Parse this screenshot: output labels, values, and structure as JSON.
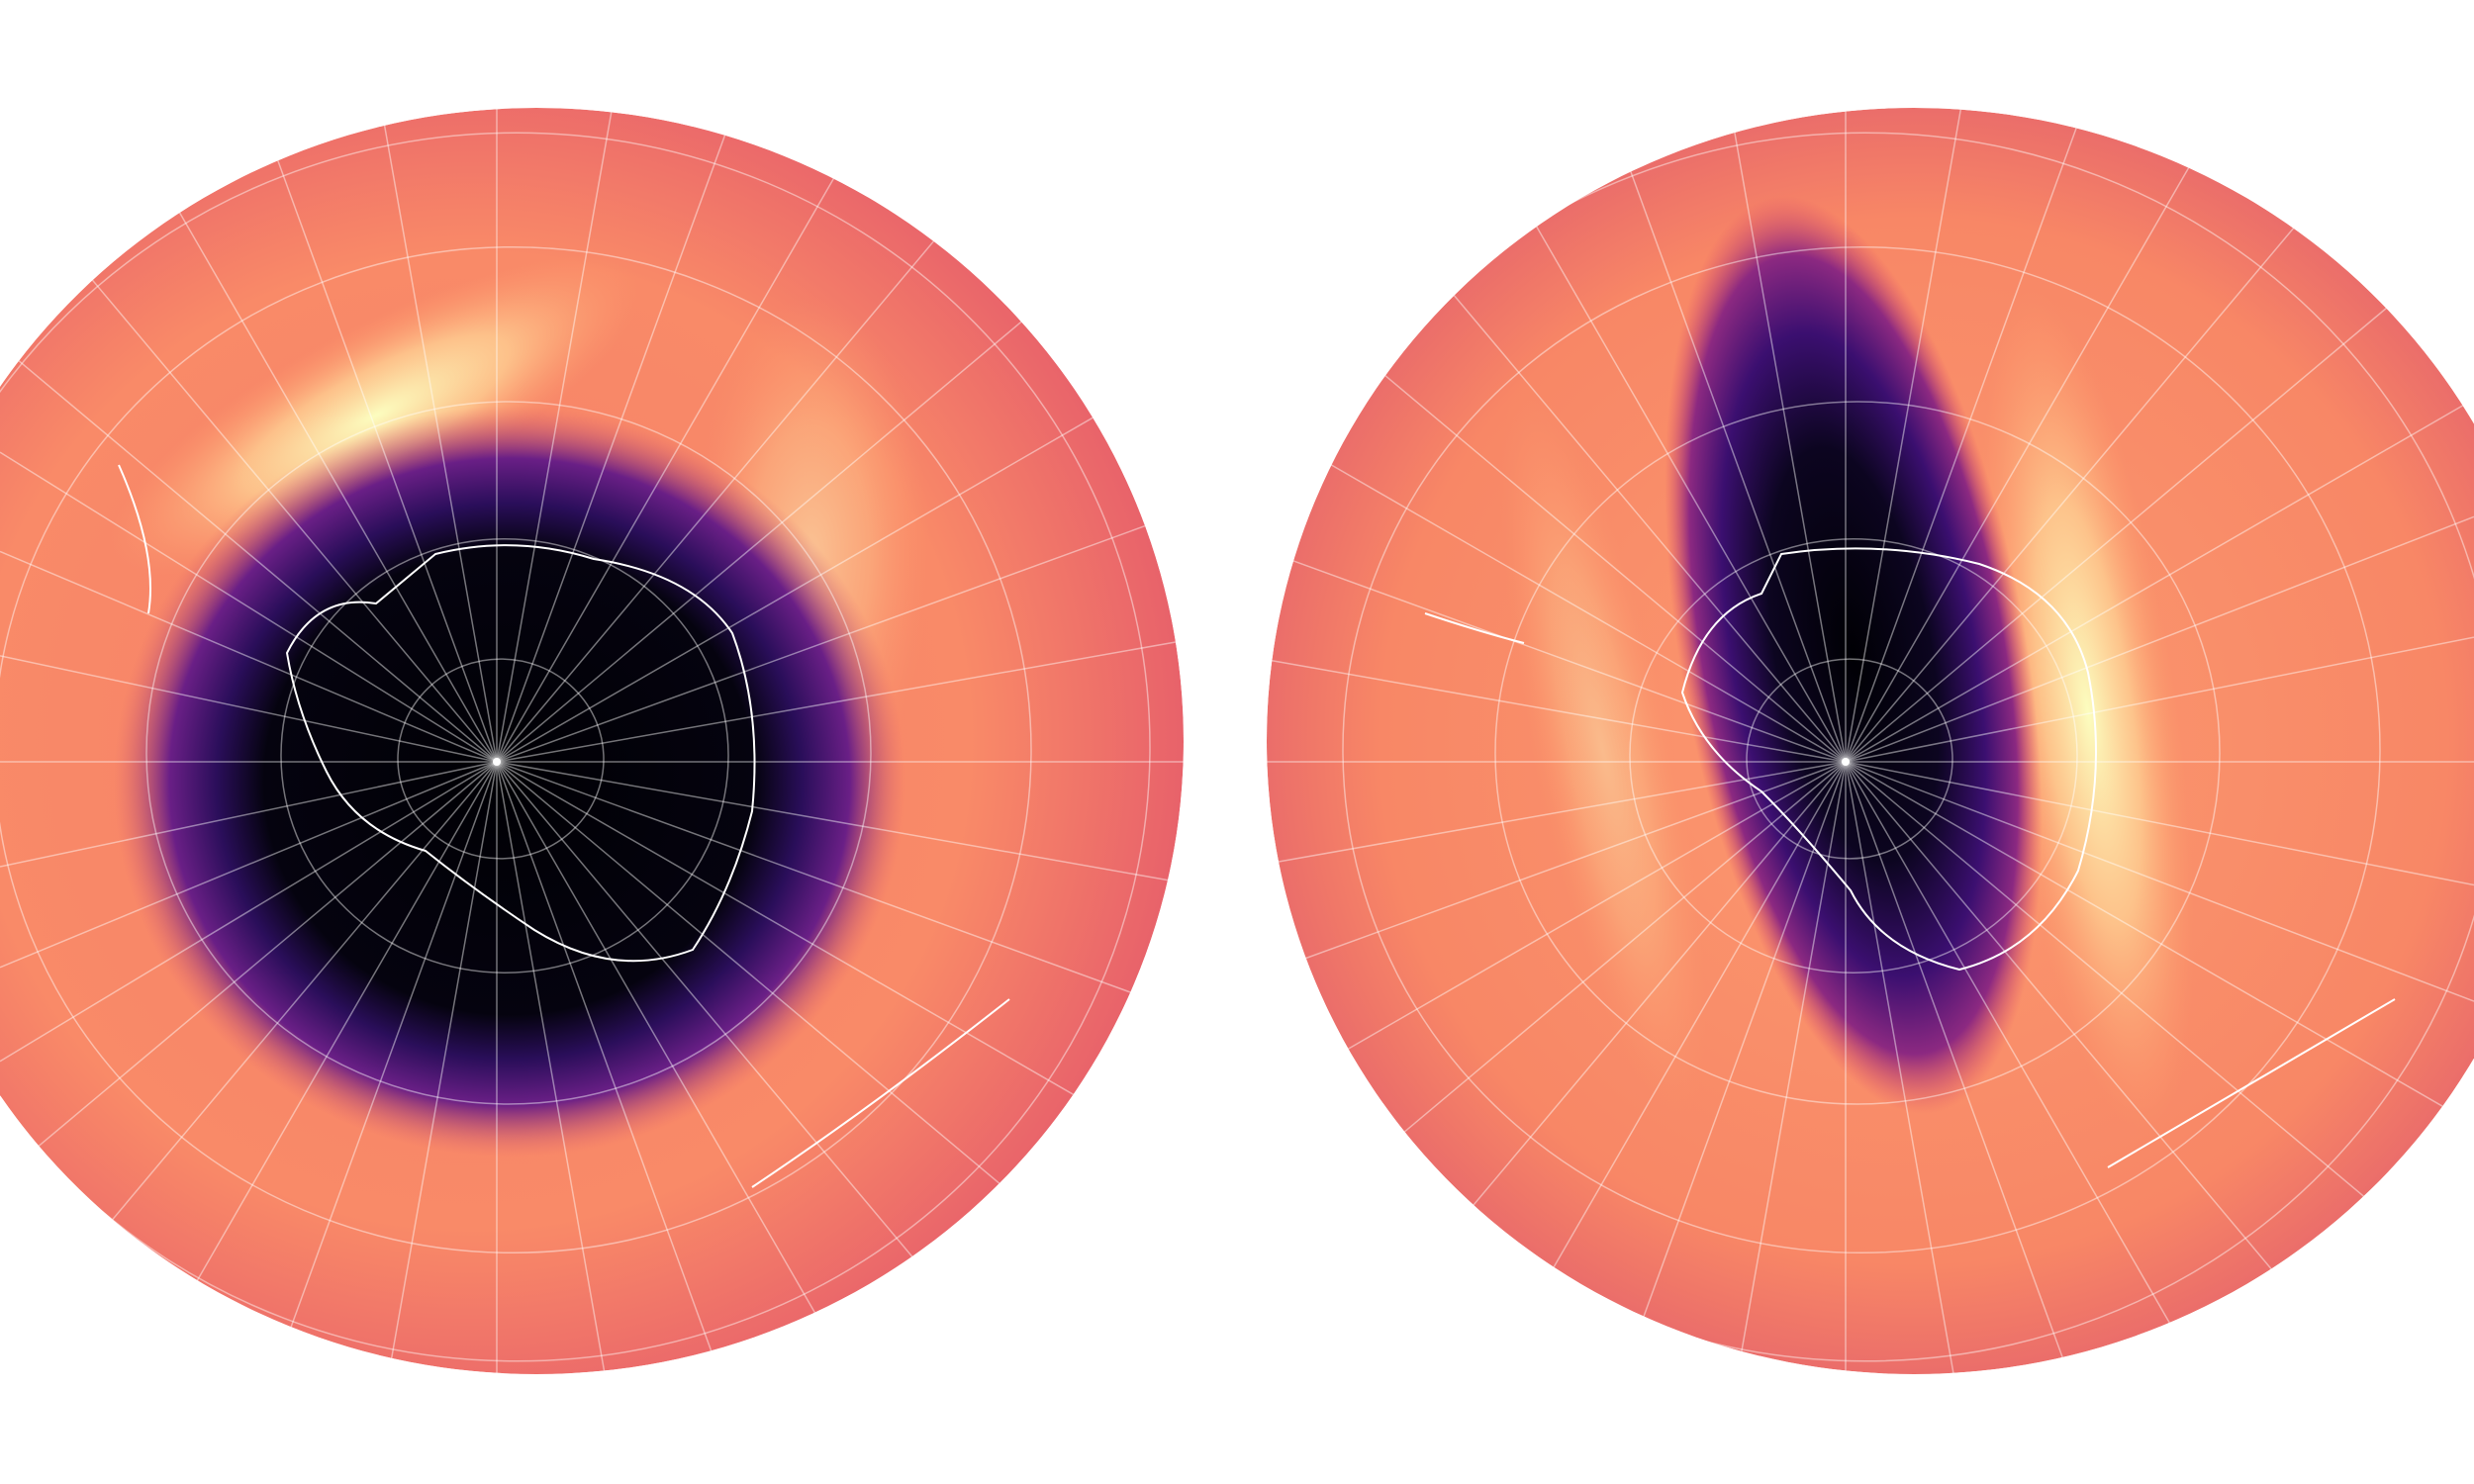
{
  "colors": {
    "background": "#ffffff",
    "colormap": [
      "#000004",
      "#3b0f70",
      "#8c2981",
      "#de4968",
      "#fe9f6d",
      "#fcfdbf"
    ],
    "graticule": "#ffffff",
    "coastline": "#ffffff"
  },
  "panels": [
    {
      "id": "left-globe"
    },
    {
      "id": "right-globe"
    }
  ]
}
